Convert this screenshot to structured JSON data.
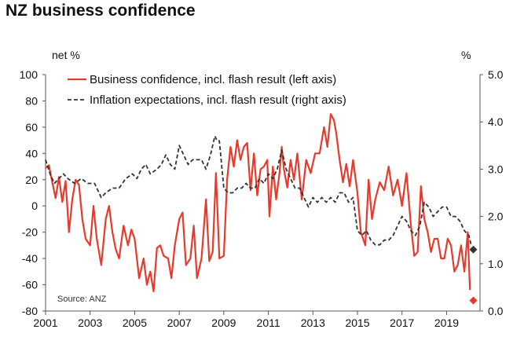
{
  "chart_data": {
    "type": "line",
    "title": "NZ business confidence",
    "left_axis_unit": "net %",
    "right_axis_unit": "%",
    "source": "Source: ANZ",
    "legend_position": "top-left",
    "x_range": [
      2001,
      2020.5
    ],
    "x_ticks": [
      2001,
      2003,
      2005,
      2007,
      2009,
      2011,
      2013,
      2015,
      2017,
      2019
    ],
    "x_tick_labels": [
      "2001",
      "2003",
      "2005",
      "2007",
      "2009",
      "2011",
      "2013",
      "2015",
      "2017",
      "2019"
    ],
    "y_left_range": [
      -80,
      100
    ],
    "y_left_ticks": [
      100,
      80,
      60,
      40,
      20,
      0,
      -20,
      -40,
      -60,
      -80
    ],
    "y_left_tick_labels": [
      "100",
      "80",
      "60",
      "40",
      "20",
      "0",
      "-20",
      "-40",
      "-60",
      "-80"
    ],
    "y_right_range": [
      0.0,
      5.0
    ],
    "y_right_ticks": [
      5.0,
      4.0,
      3.0,
      2.0,
      1.0,
      0.0
    ],
    "y_right_tick_labels": [
      "5.0",
      "4.0",
      "3.0",
      "2.0",
      "1.0",
      "0.0"
    ],
    "series": [
      {
        "name": "Business confidence, incl. flash result (left axis)",
        "axis": "left",
        "color": "#e8392a",
        "style": "solid",
        "x": [
          2001.0,
          2001.15,
          2001.3,
          2001.45,
          2001.6,
          2001.75,
          2001.9,
          2002.05,
          2002.2,
          2002.35,
          2002.5,
          2002.65,
          2002.8,
          2003.0,
          2003.15,
          2003.3,
          2003.5,
          2003.7,
          2003.85,
          2004.0,
          2004.15,
          2004.3,
          2004.5,
          2004.7,
          2004.85,
          2005.0,
          2005.2,
          2005.4,
          2005.55,
          2005.7,
          2005.85,
          2006.0,
          2006.15,
          2006.3,
          2006.5,
          2006.65,
          2006.8,
          2007.0,
          2007.15,
          2007.3,
          2007.5,
          2007.65,
          2007.8,
          2008.0,
          2008.2,
          2008.35,
          2008.5,
          2008.65,
          2008.8,
          2009.0,
          2009.15,
          2009.3,
          2009.45,
          2009.6,
          2009.75,
          2009.9,
          2010.05,
          2010.2,
          2010.35,
          2010.5,
          2010.65,
          2010.8,
          2010.95,
          2011.05,
          2011.2,
          2011.35,
          2011.5,
          2011.6,
          2011.7,
          2011.85,
          2012.0,
          2012.15,
          2012.3,
          2012.5,
          2012.7,
          2012.9,
          2013.1,
          2013.3,
          2013.5,
          2013.65,
          2013.8,
          2013.95,
          2014.05,
          2014.2,
          2014.35,
          2014.5,
          2014.65,
          2014.8,
          2015.0,
          2015.15,
          2015.35,
          2015.5,
          2015.65,
          2015.8,
          2016.0,
          2016.2,
          2016.4,
          2016.6,
          2016.8,
          2017.0,
          2017.2,
          2017.4,
          2017.55,
          2017.7,
          2017.85,
          2018.0,
          2018.15,
          2018.3,
          2018.45,
          2018.6,
          2018.75,
          2018.9,
          2019.05,
          2019.2,
          2019.35,
          2019.5,
          2019.65,
          2019.8,
          2019.95,
          2020.05
        ],
        "values": [
          29,
          31,
          18,
          6,
          22,
          3,
          19,
          -20,
          5,
          20,
          16,
          -10,
          -25,
          -30,
          0,
          -25,
          -45,
          -10,
          0,
          -20,
          -33,
          -40,
          -15,
          -30,
          -18,
          -25,
          -55,
          -40,
          -60,
          -50,
          -65,
          -32,
          -30,
          -38,
          -40,
          -55,
          -30,
          -10,
          -5,
          -45,
          -40,
          -15,
          -55,
          -40,
          5,
          -42,
          -35,
          25,
          -40,
          -38,
          20,
          45,
          30,
          50,
          35,
          45,
          48,
          12,
          40,
          8,
          28,
          30,
          35,
          -8,
          30,
          5,
          25,
          45,
          28,
          14,
          35,
          20,
          40,
          5,
          35,
          25,
          40,
          40,
          60,
          45,
          70,
          65,
          55,
          35,
          18,
          32,
          15,
          35,
          10,
          -20,
          -30,
          20,
          -10,
          5,
          18,
          12,
          30,
          8,
          20,
          0,
          25,
          -15,
          -38,
          -35,
          15,
          -10,
          -20,
          -35,
          -25,
          -25,
          -40,
          -40,
          -25,
          -30,
          -50,
          -45,
          -30,
          -50,
          -20,
          -64
        ],
        "flash_marker": {
          "x": 2020.2,
          "value": -72,
          "shape": "diamond"
        }
      },
      {
        "name": "Inflation expectations, incl. flash result (right axis)",
        "axis": "right",
        "color": "#333333",
        "style": "dashed",
        "x": [
          2001.0,
          2001.2,
          2001.4,
          2001.6,
          2001.8,
          2002.0,
          2002.3,
          2002.6,
          2002.9,
          2003.2,
          2003.5,
          2003.7,
          2004.0,
          2004.3,
          2004.6,
          2004.9,
          2005.1,
          2005.3,
          2005.5,
          2005.7,
          2006.0,
          2006.2,
          2006.4,
          2006.6,
          2006.8,
          2007.0,
          2007.2,
          2007.4,
          2007.6,
          2007.8,
          2008.0,
          2008.2,
          2008.4,
          2008.5,
          2008.6,
          2008.7,
          2008.8,
          2009.0,
          2009.2,
          2009.4,
          2009.6,
          2009.8,
          2010.0,
          2010.2,
          2010.4,
          2010.6,
          2010.8,
          2011.0,
          2011.2,
          2011.4,
          2011.6,
          2011.8,
          2012.0,
          2012.2,
          2012.4,
          2012.6,
          2012.8,
          2013.0,
          2013.2,
          2013.4,
          2013.6,
          2013.8,
          2014.0,
          2014.2,
          2014.4,
          2014.6,
          2014.8,
          2015.0,
          2015.2,
          2015.4,
          2015.6,
          2015.8,
          2016.0,
          2016.2,
          2016.4,
          2016.6,
          2016.8,
          2017.0,
          2017.2,
          2017.4,
          2017.6,
          2017.8,
          2018.0,
          2018.2,
          2018.4,
          2018.6,
          2018.8,
          2019.0,
          2019.2,
          2019.4,
          2019.6,
          2019.8,
          2020.0,
          2020.1
        ],
        "values": [
          3.2,
          2.9,
          2.7,
          2.8,
          2.9,
          2.8,
          2.7,
          2.8,
          2.7,
          2.7,
          2.4,
          2.5,
          2.6,
          2.6,
          2.8,
          2.9,
          2.8,
          3.0,
          3.1,
          2.9,
          3.0,
          3.1,
          3.3,
          3.1,
          3.0,
          3.5,
          3.3,
          3.1,
          3.2,
          3.2,
          3.2,
          3.0,
          3.3,
          3.5,
          3.7,
          3.6,
          3.6,
          2.6,
          2.5,
          2.5,
          2.6,
          2.6,
          2.7,
          2.6,
          2.6,
          2.8,
          2.7,
          2.9,
          2.8,
          3.0,
          3.4,
          3.0,
          2.8,
          2.6,
          2.6,
          2.4,
          2.2,
          2.4,
          2.3,
          2.4,
          2.3,
          2.4,
          2.3,
          2.5,
          2.5,
          2.3,
          2.4,
          1.7,
          1.6,
          1.7,
          1.5,
          1.4,
          1.4,
          1.5,
          1.5,
          1.6,
          1.8,
          2.0,
          1.9,
          1.7,
          1.6,
          1.8,
          2.3,
          2.2,
          2.0,
          2.1,
          2.2,
          2.2,
          2.0,
          2.0,
          1.9,
          1.7,
          1.6,
          1.4
        ],
        "flash_marker": {
          "x": 2020.2,
          "value": 1.3,
          "shape": "diamond"
        }
      }
    ]
  }
}
